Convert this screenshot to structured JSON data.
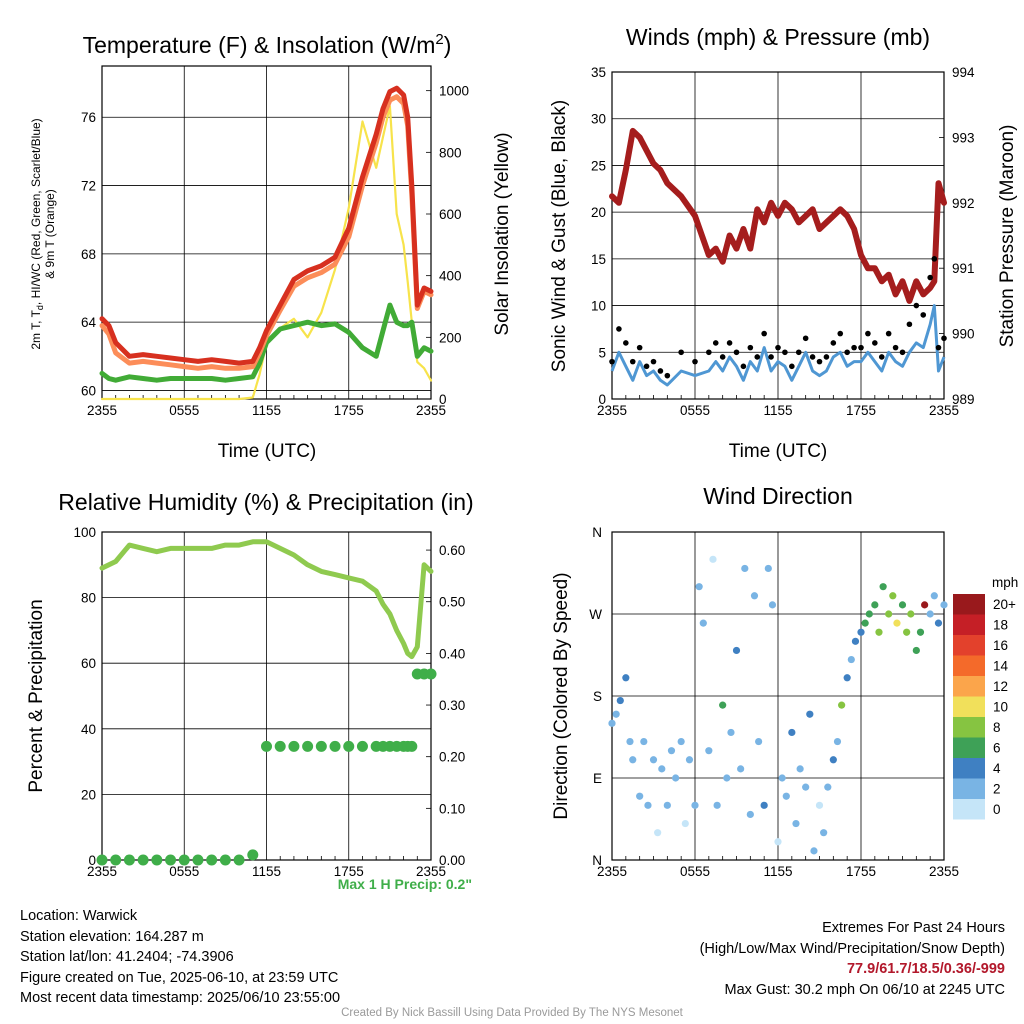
{
  "panels": {
    "temperature": {
      "title": "Temperature (F) & Insolation (W/m²)",
      "title_base": "Temperature (F) & Insolation (W/m",
      "title_sup": "2",
      "title_end": ")",
      "ylabel_lines": [
        "2m T, T",
        ", HI/WC (Red, Green, Scarlet/Blue)",
        "& 9m T (Orange)"
      ],
      "ylabel_sub": "d",
      "y2label": "Solar Insolation (Yellow)",
      "xlabel": "Time (UTC)"
    },
    "winds": {
      "title": "Winds (mph) & Pressure (mb)",
      "ylabel": "Sonic Wind & Gust (Blue, Black)",
      "y2label": "Station Pressure (Maroon)",
      "xlabel": "Time (UTC)"
    },
    "humidity": {
      "title": "Relative Humidity (%) & Precipitation (in)",
      "ylabel": "Percent & Precipitation",
      "note": "Max 1 H Precip: 0.2\""
    },
    "direction": {
      "title": "Wind Direction",
      "ylabel": "Direction (Colored By Speed)",
      "colorbar_title": "mph"
    }
  },
  "chart_data": [
    {
      "type": "line",
      "title": "Temperature (F) & Insolation (W/m2)",
      "xlabel": "Time (UTC)",
      "ylabel": "2m T, Td, HI/WC (Red, Green, Scarlet/Blue) & 9m T (Orange)",
      "y2label": "Solar Insolation (Yellow)",
      "x_ticks": [
        "2355",
        "0555",
        "1155",
        "1755",
        "2355"
      ],
      "x_range_hours": [
        0,
        24
      ],
      "ylim": [
        59.5,
        79
      ],
      "y_ticks": [
        60,
        64,
        68,
        72,
        76
      ],
      "y2lim": [
        0,
        1080
      ],
      "y2_ticks": [
        0,
        200,
        400,
        600,
        800,
        1000
      ],
      "grid": true,
      "x_hours": [
        0,
        0.5,
        1,
        2,
        3,
        4,
        5,
        6,
        7,
        8,
        9,
        10,
        11,
        11.5,
        12,
        13,
        14,
        15,
        16,
        17,
        18,
        19,
        20,
        20.5,
        21,
        21.5,
        22,
        22.3,
        22.6,
        23,
        23.5,
        24
      ],
      "series": [
        {
          "name": "2m T",
          "color": "#d7301f",
          "values": [
            64.2,
            63.8,
            62.8,
            62.0,
            62.1,
            62.0,
            61.9,
            61.8,
            61.7,
            61.8,
            61.7,
            61.6,
            61.7,
            62.5,
            63.5,
            65.0,
            66.5,
            67.0,
            67.3,
            67.8,
            69.5,
            72.5,
            75.0,
            76.5,
            77.5,
            77.7,
            77.3,
            76.0,
            72.0,
            65.0,
            66.0,
            65.8
          ]
        },
        {
          "name": "9m T",
          "color": "#fc8d59",
          "values": [
            63.8,
            63.3,
            62.2,
            61.6,
            61.7,
            61.6,
            61.5,
            61.4,
            61.3,
            61.4,
            61.3,
            61.3,
            61.4,
            62.2,
            63.2,
            64.7,
            66.1,
            66.6,
            66.9,
            67.4,
            69.0,
            72.0,
            74.5,
            76.0,
            77.0,
            77.2,
            76.8,
            75.5,
            71.5,
            64.8,
            65.8,
            65.6
          ]
        },
        {
          "name": "Td",
          "color": "#41ab36",
          "values": [
            61.0,
            60.7,
            60.6,
            60.8,
            60.7,
            60.6,
            60.7,
            60.7,
            60.7,
            60.7,
            60.6,
            60.7,
            60.8,
            61.6,
            62.8,
            63.6,
            63.8,
            64.0,
            63.8,
            63.9,
            63.4,
            62.5,
            62.0,
            63.5,
            65.0,
            64.0,
            63.8,
            63.8,
            64.0,
            62.0,
            62.5,
            62.3
          ]
        },
        {
          "name": "Solar Insolation",
          "color": "#f7e34b",
          "axis": "y2",
          "values": [
            0,
            0,
            0,
            0,
            0,
            0,
            0,
            0,
            0,
            0,
            0,
            0,
            5,
            80,
            180,
            230,
            260,
            200,
            280,
            420,
            620,
            900,
            750,
            850,
            950,
            600,
            500,
            380,
            250,
            120,
            100,
            60
          ]
        }
      ]
    },
    {
      "type": "line",
      "title": "Winds (mph) & Pressure (mb)",
      "xlabel": "Time (UTC)",
      "ylabel": "Sonic Wind & Gust (Blue, Black)",
      "y2label": "Station Pressure (Maroon)",
      "x_ticks": [
        "2355",
        "0555",
        "1155",
        "1755",
        "2355"
      ],
      "x_range_hours": [
        0,
        24
      ],
      "ylim": [
        0,
        35
      ],
      "y_ticks": [
        0,
        5,
        10,
        15,
        20,
        25,
        30,
        35
      ],
      "y2lim": [
        989,
        994
      ],
      "y2_ticks": [
        989,
        990,
        991,
        992,
        993,
        994
      ],
      "grid": true,
      "x_hours": [
        0,
        0.5,
        1,
        1.5,
        2,
        2.5,
        3,
        3.5,
        4,
        5,
        6,
        7,
        7.5,
        8,
        8.5,
        9,
        9.5,
        10,
        10.5,
        11,
        11.5,
        12,
        12.5,
        13,
        13.5,
        14,
        14.5,
        15,
        15.5,
        16,
        16.5,
        17,
        17.5,
        18,
        18.5,
        19,
        19.5,
        20,
        20.5,
        21,
        21.5,
        22,
        22.5,
        23,
        23.3,
        23.6,
        24
      ],
      "series": [
        {
          "name": "Sonic Wind",
          "color": "#4f97d3",
          "values": [
            3,
            5,
            3.5,
            2,
            4,
            2.5,
            3,
            2,
            1.5,
            3,
            2.5,
            3,
            4,
            3,
            4.5,
            3.5,
            2,
            4,
            3,
            5.5,
            3,
            4,
            3.5,
            2,
            3.5,
            5,
            3,
            2.5,
            3,
            4.5,
            5,
            3.5,
            4,
            4,
            5,
            4,
            3,
            5,
            4,
            3.5,
            5,
            6,
            5.5,
            8,
            10,
            3,
            4.5
          ]
        },
        {
          "name": "Gust",
          "color": "#000000",
          "marker": "dot",
          "values": [
            4,
            7.5,
            6,
            4,
            5.5,
            3.5,
            4,
            3,
            2.5,
            5,
            4,
            5,
            6,
            4.5,
            6,
            5,
            3.5,
            5.5,
            4.5,
            7,
            4.5,
            5.5,
            5,
            3.5,
            5,
            6.5,
            4.5,
            4,
            4.5,
            6,
            7,
            5,
            5.5,
            5.5,
            7,
            6,
            4.5,
            7,
            5.5,
            5,
            8,
            10,
            9,
            13,
            15,
            5.5,
            6.5
          ]
        },
        {
          "name": "Station Pressure",
          "color": "#a51d1d",
          "axis": "y2",
          "values": [
            992.1,
            992.0,
            992.5,
            993.1,
            993.0,
            992.8,
            992.6,
            992.5,
            992.3,
            992.1,
            991.8,
            991.2,
            991.3,
            991.1,
            991.5,
            991.3,
            991.6,
            991.3,
            991.9,
            991.7,
            992.0,
            991.8,
            992.0,
            991.9,
            991.7,
            991.8,
            991.9,
            991.6,
            991.7,
            991.8,
            991.9,
            991.8,
            991.6,
            991.2,
            991.0,
            991.0,
            990.8,
            990.9,
            990.6,
            990.8,
            990.5,
            990.8,
            990.6,
            990.7,
            990.8,
            992.3,
            992.0
          ]
        }
      ]
    },
    {
      "type": "line",
      "title": "Relative Humidity (%) & Precipitation (in)",
      "ylabel": "Percent & Precipitation",
      "x_ticks": [
        "2355",
        "0555",
        "1155",
        "1755",
        "2355"
      ],
      "x_range_hours": [
        0,
        24
      ],
      "ylim": [
        0,
        100
      ],
      "y_ticks": [
        0,
        20,
        40,
        60,
        80,
        100
      ],
      "y2lim": [
        0,
        0.635
      ],
      "y2_ticks": [
        0.0,
        0.1,
        0.2,
        0.3,
        0.4,
        0.5,
        0.6
      ],
      "grid": true,
      "x_hours": [
        0,
        1,
        2,
        3,
        4,
        5,
        6,
        7,
        8,
        9,
        10,
        11,
        12,
        13,
        14,
        15,
        16,
        17,
        18,
        19,
        20,
        20.5,
        21,
        21.5,
        22,
        22.3,
        22.6,
        23,
        23.5,
        24
      ],
      "series": [
        {
          "name": "Relative Humidity",
          "color": "#8fca4f",
          "values": [
            89,
            91,
            96,
            95,
            94,
            95,
            95,
            95,
            95,
            96,
            96,
            97,
            97,
            95,
            93,
            90,
            88,
            87,
            86,
            85,
            82,
            78,
            75,
            70,
            66,
            63,
            62,
            65,
            90,
            88
          ]
        },
        {
          "name": "Precipitation",
          "color": "#3fae49",
          "axis": "y2",
          "marker": "dot",
          "values": [
            0,
            0,
            0,
            0,
            0,
            0,
            0,
            0,
            0,
            0,
            0,
            0.01,
            0.22,
            0.22,
            0.22,
            0.22,
            0.22,
            0.22,
            0.22,
            0.22,
            0.22,
            0.22,
            0.22,
            0.22,
            0.22,
            0.22,
            0.22,
            0.36,
            0.36,
            0.36
          ]
        }
      ]
    },
    {
      "type": "scatter",
      "title": "Wind Direction",
      "ylabel": "Direction (Colored By Speed)",
      "x_ticks": [
        "2355",
        "0555",
        "1155",
        "1755",
        "2355"
      ],
      "x_range_hours": [
        0,
        24
      ],
      "y_ticks": [
        "N",
        "E",
        "S",
        "W",
        "N"
      ],
      "ylim_degrees": [
        0,
        360
      ],
      "grid": true,
      "colorbar": {
        "title": "mph",
        "labels": [
          "20+",
          "18",
          "16",
          "14",
          "12",
          "10",
          "8",
          "6",
          "4",
          "2",
          "0"
        ],
        "colors": [
          "#99191c",
          "#c51f26",
          "#e3412c",
          "#f46a2a",
          "#fba54b",
          "#f1e05b",
          "#86c441",
          "#3ea157",
          "#3f80c2",
          "#79b4e4",
          "#c5e5f8"
        ]
      },
      "x_hours": [
        0,
        0.3,
        0.6,
        1,
        1.3,
        1.5,
        2,
        2.3,
        2.6,
        3,
        3.3,
        3.6,
        4,
        4.3,
        4.6,
        5,
        5.3,
        5.6,
        6,
        6.3,
        6.6,
        7,
        7.3,
        7.6,
        8,
        8.3,
        8.6,
        9,
        9.3,
        9.6,
        10,
        10.3,
        10.6,
        11,
        11.3,
        11.6,
        12,
        12.3,
        12.6,
        13,
        13.3,
        13.6,
        14,
        14.3,
        14.6,
        15,
        15.3,
        15.6,
        16,
        16.3,
        16.6,
        17,
        17.3,
        17.6,
        18,
        18.3,
        18.6,
        19,
        19.3,
        19.6,
        20,
        20.3,
        20.6,
        21,
        21.3,
        21.6,
        22,
        22.3,
        22.6,
        23,
        23.3,
        23.6,
        24
      ],
      "values": [
        150,
        160,
        175,
        200,
        130,
        110,
        70,
        130,
        60,
        110,
        30,
        100,
        60,
        120,
        90,
        130,
        40,
        110,
        60,
        300,
        260,
        120,
        330,
        60,
        170,
        90,
        140,
        230,
        100,
        320,
        50,
        290,
        130,
        60,
        320,
        280,
        20,
        90,
        70,
        140,
        40,
        100,
        80,
        160,
        10,
        60,
        30,
        80,
        110,
        130,
        170,
        200,
        220,
        240,
        250,
        260,
        270,
        280,
        250,
        300,
        270,
        290,
        260,
        280,
        250,
        270,
        230,
        250,
        280,
        270,
        290,
        260,
        280
      ],
      "speeds": [
        3,
        3,
        4,
        4,
        2,
        3,
        2,
        3,
        2,
        3,
        1,
        2,
        2,
        3,
        2,
        3,
        1,
        2,
        3,
        2,
        2,
        3,
        1,
        2,
        6,
        3,
        2,
        4,
        3,
        2,
        3,
        2,
        3,
        4,
        2,
        3,
        1,
        3,
        2,
        5,
        2,
        3,
        2,
        4,
        3,
        1,
        2,
        3,
        4,
        3,
        8,
        4,
        3,
        4,
        5,
        6,
        7,
        7,
        8,
        6,
        9,
        8,
        10,
        6,
        8,
        9,
        7,
        6,
        20,
        3,
        3,
        4,
        3
      ]
    }
  ],
  "info": {
    "location": "Location: Warwick",
    "elevation": "Station elevation: 164.287 m",
    "latlon": "Station lat/lon: 41.2404; -74.3906",
    "created": "Figure created on Tue, 2025-06-10, at 23:59 UTC",
    "recent": "Most recent data timestamp: 2025/06/10 23:55:00"
  },
  "extremes": {
    "heading": "Extremes For Past 24 Hours",
    "subheading": "(High/Low/Max Wind/Precipitation/Snow Depth)",
    "values": "77.9/61.7/18.5/0.36/-999",
    "max_gust": "Max Gust: 30.2 mph On 06/10 at 2245 UTC"
  },
  "credit": "Created By Nick Bassill Using Data Provided By The NYS Mesonet"
}
